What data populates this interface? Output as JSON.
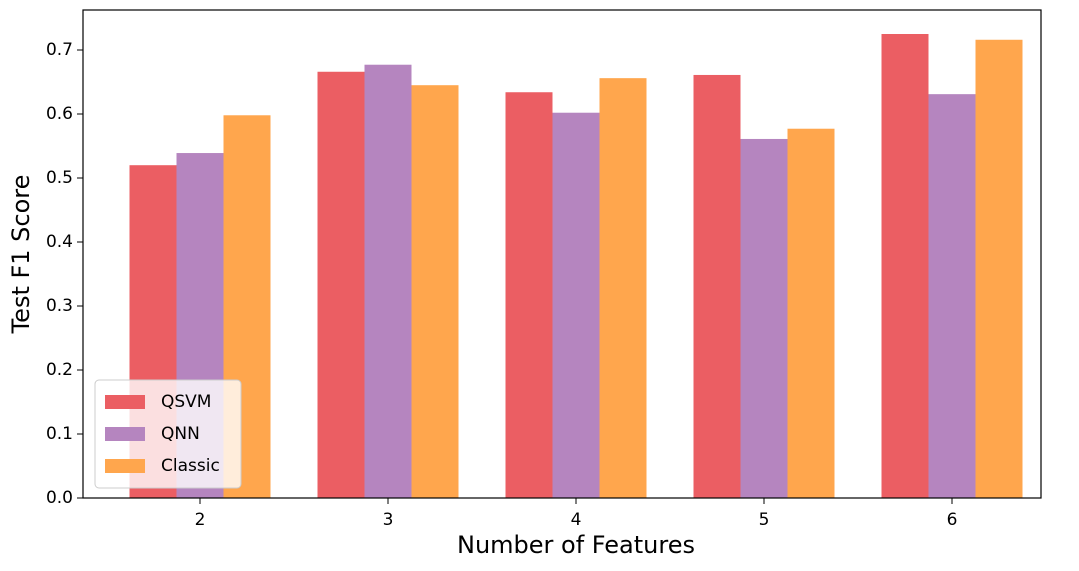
{
  "chart_data": {
    "type": "bar",
    "x_label": "Number of Features",
    "y_label": "Test F1 Score",
    "categories": [
      "2",
      "3",
      "4",
      "5",
      "6"
    ],
    "series": [
      {
        "name": "QSVM",
        "color": "#eb5e63",
        "values": [
          0.52,
          0.666,
          0.634,
          0.661,
          0.725
        ]
      },
      {
        "name": "QNN",
        "color": "#b585bf",
        "values": [
          0.539,
          0.677,
          0.602,
          0.561,
          0.631
        ]
      },
      {
        "name": "Classic",
        "color": "#ffa64d",
        "values": [
          0.598,
          0.645,
          0.656,
          0.577,
          0.716
        ]
      }
    ],
    "ylim": [
      0,
      0.7625
    ],
    "yticks": [
      {
        "value": 0,
        "label": "0.0"
      },
      0.1,
      0.2,
      0.3,
      0.4,
      0.5,
      0.6,
      0.7
    ],
    "legend": "lower left"
  }
}
